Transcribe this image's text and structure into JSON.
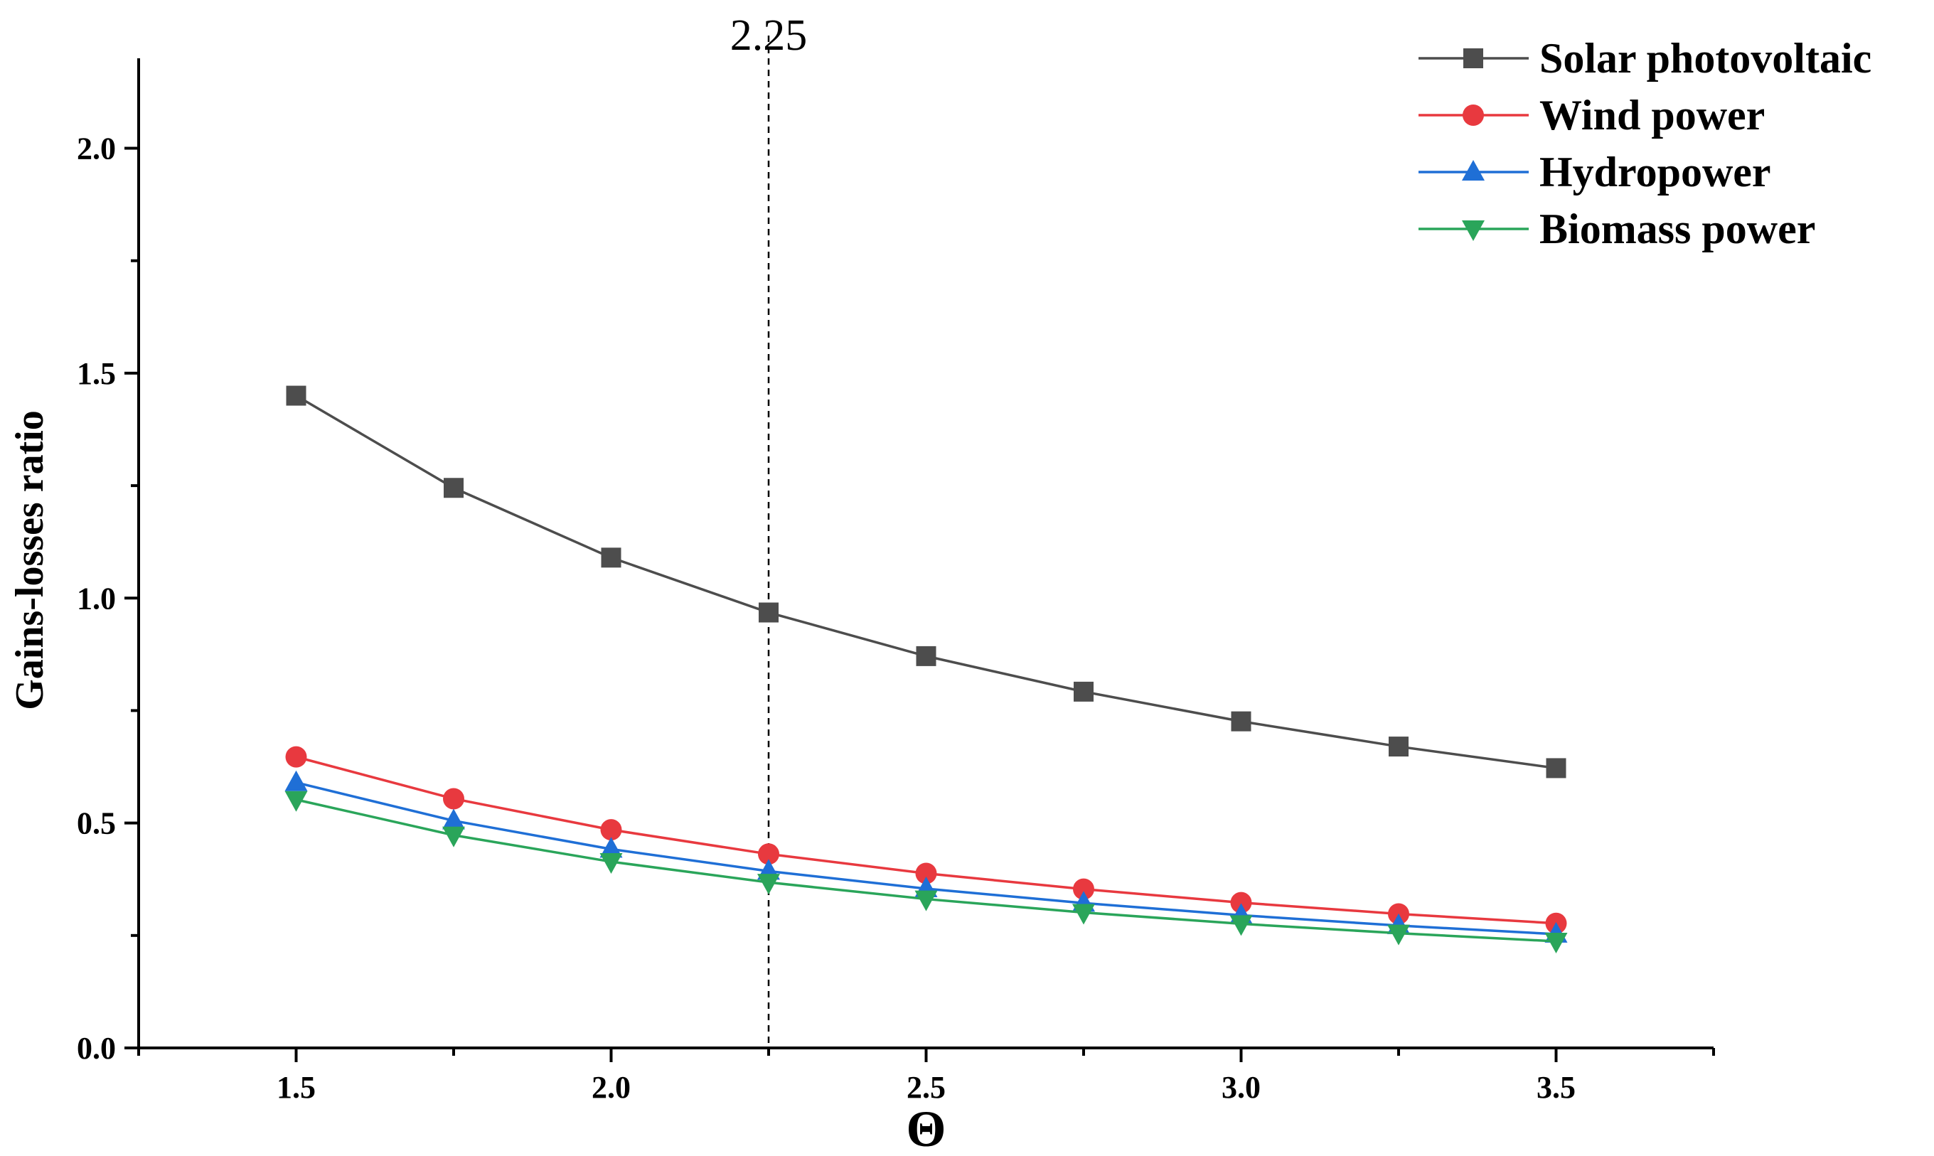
{
  "chart_data": {
    "type": "line",
    "xlabel": "Θ",
    "ylabel": "Gains-losses ratio",
    "xlim": [
      1.25,
      3.75
    ],
    "ylim": [
      0,
      2.2
    ],
    "xticks": [
      1.5,
      2.0,
      2.5,
      3.0,
      3.5
    ],
    "xtick_labels": [
      "1.5",
      "2.0",
      "2.5",
      "3.0",
      "3.5"
    ],
    "xminor": [
      1.25,
      1.75,
      2.25,
      2.75,
      3.25,
      3.75
    ],
    "yticks": [
      0.0,
      0.5,
      1.0,
      1.5,
      2.0
    ],
    "ytick_labels": [
      "0.0",
      "0.5",
      "1.0",
      "1.5",
      "2.0"
    ],
    "yminor": [
      0.25,
      0.75,
      1.25,
      1.75
    ],
    "grid": false,
    "legend_position": "top-right",
    "x": [
      1.5,
      1.75,
      2.0,
      2.25,
      2.5,
      2.75,
      3.0,
      3.25,
      3.5
    ],
    "series": [
      {
        "name": "Solar photovoltaic",
        "marker": "square",
        "color": "#4d4d4d",
        "values": [
          1.45,
          1.245,
          1.09,
          0.968,
          0.871,
          0.792,
          0.726,
          0.67,
          0.622
        ]
      },
      {
        "name": "Wind power",
        "marker": "circle",
        "color": "#e8393f",
        "values": [
          0.647,
          0.554,
          0.485,
          0.431,
          0.388,
          0.353,
          0.323,
          0.298,
          0.277
        ]
      },
      {
        "name": "Hydropower",
        "marker": "triangle-up",
        "color": "#1f6fd6",
        "values": [
          0.59,
          0.505,
          0.442,
          0.393,
          0.354,
          0.322,
          0.295,
          0.272,
          0.253
        ]
      },
      {
        "name": "Biomass power",
        "marker": "triangle-down",
        "color": "#2aa55a",
        "values": [
          0.552,
          0.473,
          0.414,
          0.368,
          0.331,
          0.301,
          0.276,
          0.255,
          0.237
        ]
      }
    ],
    "annotations": [
      {
        "type": "vline",
        "x": 2.25,
        "label": "2.25",
        "style": "dashed"
      }
    ]
  }
}
